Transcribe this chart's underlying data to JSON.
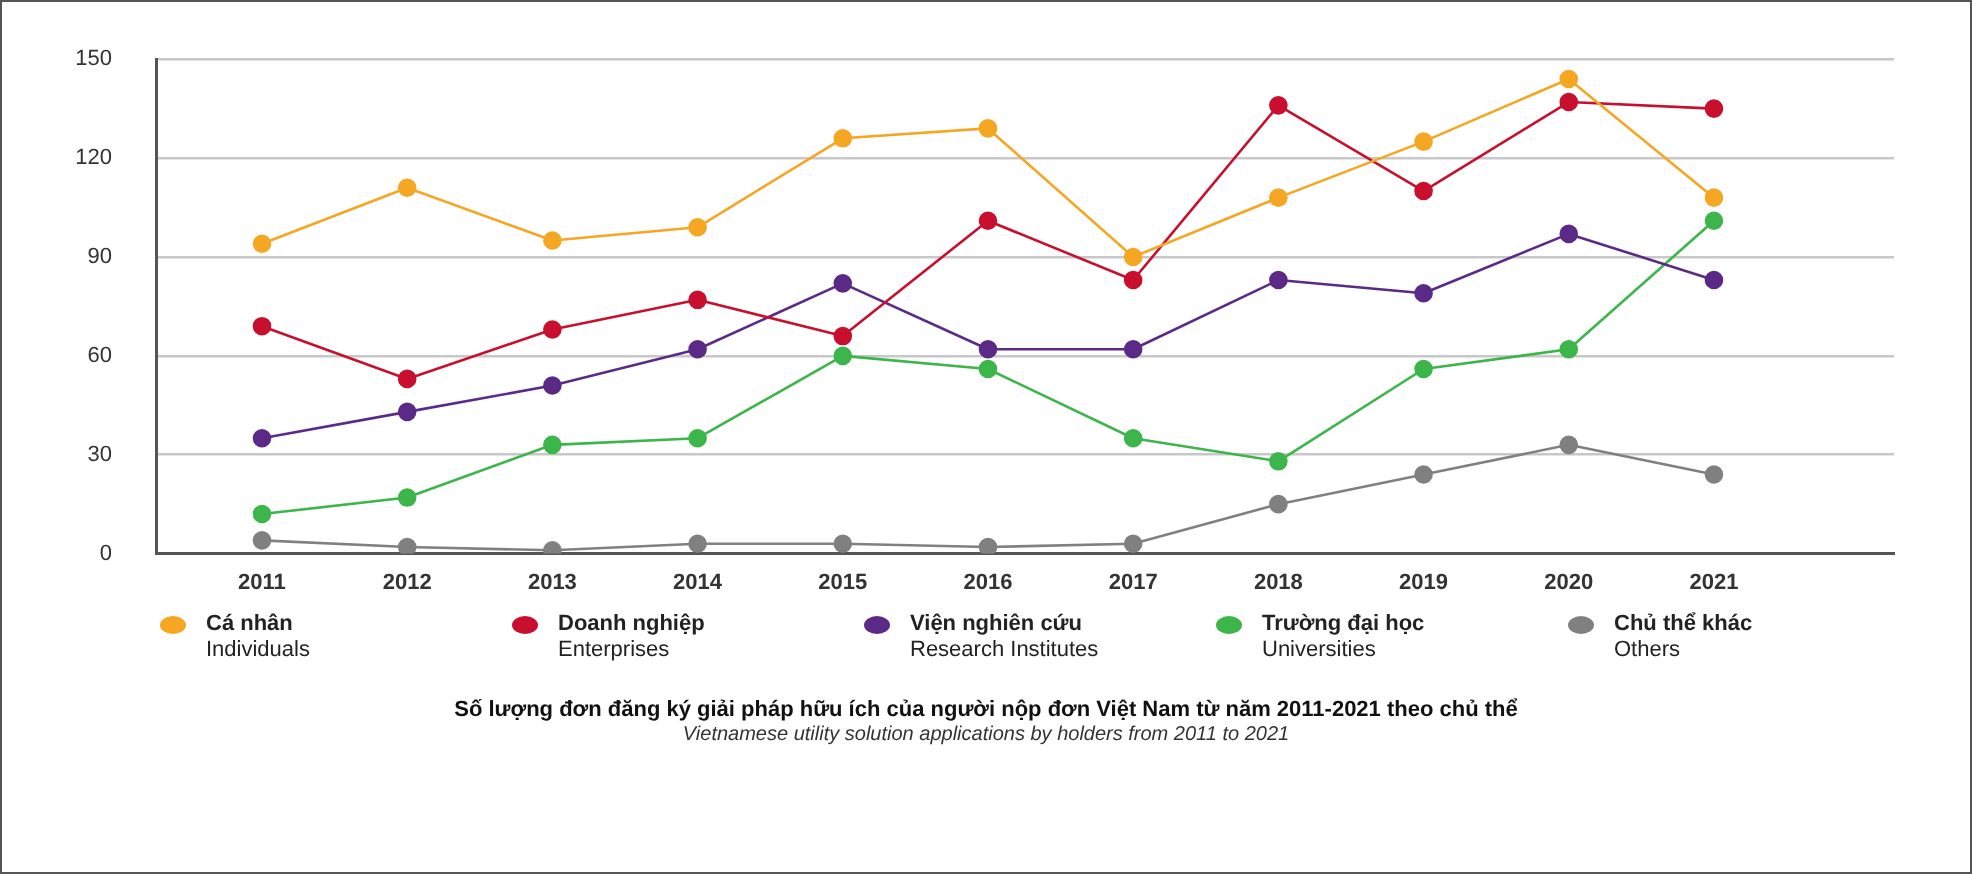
{
  "chart_data": {
    "type": "line",
    "title": "Số lượng đơn đăng ký giải pháp hữu ích của người nộp đơn Việt Nam từ năm 2011-2021 theo chủ thể",
    "subtitle": "Vietnamese utility solution applications by holders from 2011 to 2021",
    "x": [
      2011,
      2012,
      2013,
      2014,
      2015,
      2016,
      2017,
      2018,
      2019,
      2020,
      2021
    ],
    "xlim": [
      2010.27,
      2022.24
    ],
    "xticks": [
      2011,
      2012,
      2013,
      2014,
      2015,
      2016,
      2017,
      2018,
      2019,
      2020,
      2021
    ],
    "ylim": [
      0,
      150
    ],
    "yticks": [
      0,
      30,
      60,
      90,
      120,
      150
    ],
    "grid": "y",
    "legend": "bottom",
    "marker": "circle",
    "line_style": "solid",
    "series": [
      {
        "name": "Cá nhân\nIndividuals",
        "color": "#f5a623",
        "values": [
          94,
          111,
          95,
          99,
          126,
          129,
          90,
          108,
          125,
          144,
          108
        ]
      },
      {
        "name": "Doanh nghiệp\nEnterprises",
        "color": "#c8102e",
        "values": [
          69,
          53,
          68,
          77,
          66,
          101,
          83,
          136,
          110,
          137,
          135
        ]
      },
      {
        "name": "Viện nghiên cứu\nResearch Institutes",
        "color": "#5b2a86",
        "values": [
          35,
          43,
          51,
          62,
          82,
          62,
          62,
          83,
          79,
          97,
          83
        ]
      },
      {
        "name": "Trường đại học\nUniversities",
        "color": "#3cb54a",
        "values": [
          12,
          17,
          33,
          35,
          60,
          56,
          35,
          28,
          56,
          62,
          101
        ]
      },
      {
        "name": "Chủ thể khác\nOthers",
        "color": "#808080",
        "values": [
          4,
          2,
          1,
          3,
          3,
          2,
          3,
          15,
          24,
          33,
          24
        ]
      }
    ]
  }
}
